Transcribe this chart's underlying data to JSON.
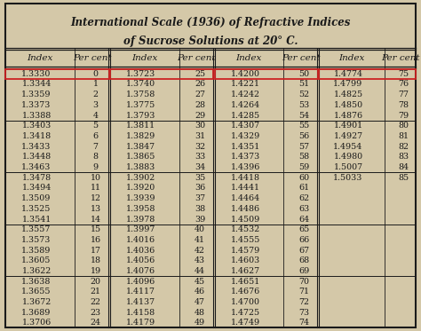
{
  "title_line1": "International Scale (1936) of Refractive Indices",
  "title_line2": "of Sucrose Solutions at 20° C.",
  "col1_data": [
    [
      "1.3330",
      "0"
    ],
    [
      "1.3344",
      "1"
    ],
    [
      "1.3359",
      "2"
    ],
    [
      "1.3373",
      "3"
    ],
    [
      "1.3388",
      "4"
    ],
    [
      "1.3403",
      "5"
    ],
    [
      "1.3418",
      "6"
    ],
    [
      "1.3433",
      "7"
    ],
    [
      "1.3448",
      "8"
    ],
    [
      "1.3463",
      "9"
    ],
    [
      "1.3478",
      "10"
    ],
    [
      "1.3494",
      "11"
    ],
    [
      "1.3509",
      "12"
    ],
    [
      "1.3525",
      "13"
    ],
    [
      "1.3541",
      "14"
    ],
    [
      "1.3557",
      "15"
    ],
    [
      "1.3573",
      "16"
    ],
    [
      "1.3589",
      "17"
    ],
    [
      "1.3605",
      "18"
    ],
    [
      "1.3622",
      "19"
    ],
    [
      "1.3638",
      "20"
    ],
    [
      "1.3655",
      "21"
    ],
    [
      "1.3672",
      "22"
    ],
    [
      "1.3689",
      "23"
    ],
    [
      "1.3706",
      "24"
    ]
  ],
  "col2_data": [
    [
      "1.3723",
      "25"
    ],
    [
      "1.3740",
      "26"
    ],
    [
      "1.3758",
      "27"
    ],
    [
      "1.3775",
      "28"
    ],
    [
      "1.3793",
      "29"
    ],
    [
      "1.3811",
      "30"
    ],
    [
      "1.3829",
      "31"
    ],
    [
      "1.3847",
      "32"
    ],
    [
      "1.3865",
      "33"
    ],
    [
      "1.3883",
      "34"
    ],
    [
      "1.3902",
      "35"
    ],
    [
      "1.3920",
      "36"
    ],
    [
      "1.3939",
      "37"
    ],
    [
      "1.3958",
      "38"
    ],
    [
      "1.3978",
      "39"
    ],
    [
      "1.3997",
      "40"
    ],
    [
      "1.4016",
      "41"
    ],
    [
      "1.4036",
      "42"
    ],
    [
      "1.4056",
      "43"
    ],
    [
      "1.4076",
      "44"
    ],
    [
      "1.4096",
      "45"
    ],
    [
      "1.4117",
      "46"
    ],
    [
      "1.4137",
      "47"
    ],
    [
      "1.4158",
      "48"
    ],
    [
      "1.4179",
      "49"
    ]
  ],
  "col3_data": [
    [
      "1.4200",
      "50"
    ],
    [
      "1.4221",
      "51"
    ],
    [
      "1.4242",
      "52"
    ],
    [
      "1.4264",
      "53"
    ],
    [
      "1.4285",
      "54"
    ],
    [
      "1.4307",
      "55"
    ],
    [
      "1.4329",
      "56"
    ],
    [
      "1.4351",
      "57"
    ],
    [
      "1.4373",
      "58"
    ],
    [
      "1.4396",
      "59"
    ],
    [
      "1.4418",
      "60"
    ],
    [
      "1.4441",
      "61"
    ],
    [
      "1.4464",
      "62"
    ],
    [
      "1.4486",
      "63"
    ],
    [
      "1.4509",
      "64"
    ],
    [
      "1.4532",
      "65"
    ],
    [
      "1.4555",
      "66"
    ],
    [
      "1.4579",
      "67"
    ],
    [
      "1.4603",
      "68"
    ],
    [
      "1.4627",
      "69"
    ],
    [
      "1.4651",
      "70"
    ],
    [
      "1.4676",
      "71"
    ],
    [
      "1.4700",
      "72"
    ],
    [
      "1.4725",
      "73"
    ],
    [
      "1.4749",
      "74"
    ]
  ],
  "col4_data": [
    [
      "1.4774",
      "75"
    ],
    [
      "1.4799",
      "76"
    ],
    [
      "1.4825",
      "77"
    ],
    [
      "1.4850",
      "78"
    ],
    [
      "1.4876",
      "79"
    ],
    [
      "1.4901",
      "80"
    ],
    [
      "1.4927",
      "81"
    ],
    [
      "1.4954",
      "82"
    ],
    [
      "1.4980",
      "83"
    ],
    [
      "1.5007",
      "84"
    ],
    [
      "1.5033",
      "85"
    ]
  ],
  "bg_color": "#d4c8a8",
  "border_color": "#1a1a1a",
  "text_color": "#1a1a1a",
  "highlight_box_color": "#cc2222",
  "title_fontsize": 8.5,
  "header_fontsize": 7.5,
  "data_fontsize": 6.8,
  "fig_width": 4.74,
  "fig_height": 3.73,
  "dpi": 100
}
